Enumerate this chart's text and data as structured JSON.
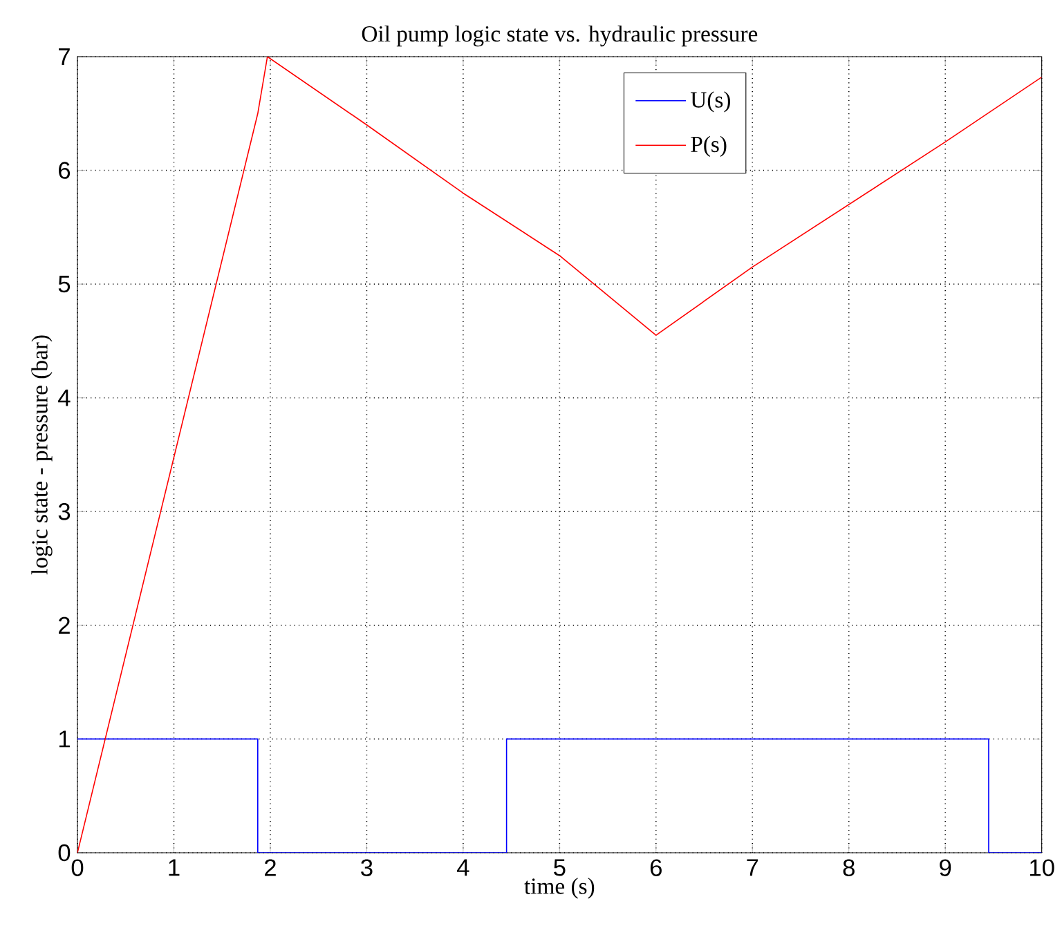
{
  "chart_data": {
    "type": "line",
    "title": "Oil pump logic state vs. hydraulic pressure",
    "xlabel": "time (s)",
    "ylabel": "logic state - pressure (bar)",
    "xlim": [
      0,
      10
    ],
    "ylim": [
      0,
      7
    ],
    "xticks": [
      0,
      1,
      2,
      3,
      4,
      5,
      6,
      7,
      8,
      9,
      10
    ],
    "yticks": [
      0,
      1,
      2,
      3,
      4,
      5,
      6,
      7
    ],
    "grid": true,
    "legend": "top right",
    "marker": "none",
    "line_style": "solid",
    "series": [
      {
        "name": "U(s)",
        "color": "#0000ff",
        "x": [
          0,
          1.87,
          1.87,
          4.45,
          4.45,
          9.45,
          9.45,
          10
        ],
        "values": [
          1,
          1,
          0,
          0,
          1,
          1,
          0,
          0
        ]
      },
      {
        "name": "P(s)",
        "color": "#ff0000",
        "x": [
          0,
          1.87,
          1.97,
          3,
          4,
          5,
          6,
          7,
          8,
          9,
          10
        ],
        "values": [
          0,
          6.5,
          7,
          6.4,
          5.8,
          5.25,
          4.55,
          5.15,
          5.7,
          6.25,
          6.82
        ]
      }
    ]
  }
}
